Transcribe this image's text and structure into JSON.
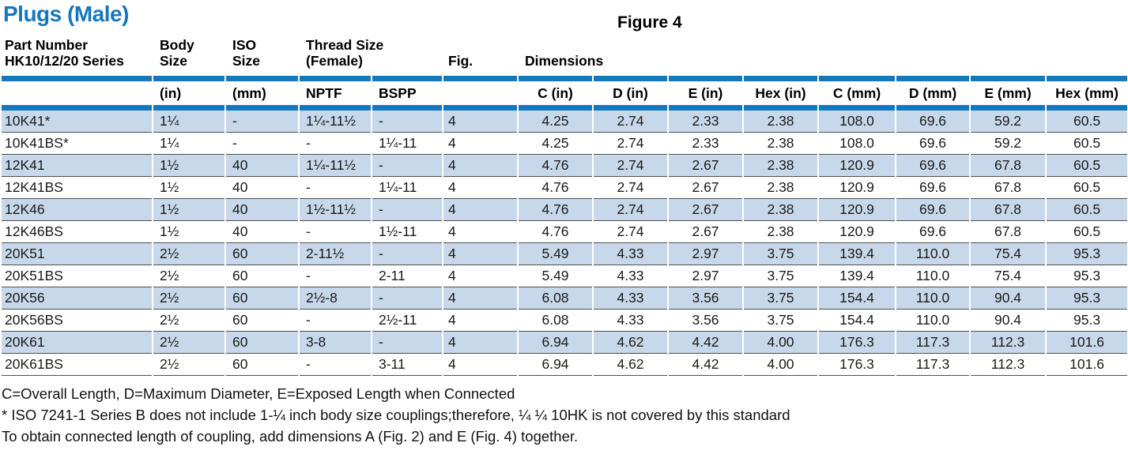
{
  "page": {
    "title": "Plugs (Male)",
    "figure_label": "Figure 4"
  },
  "colors": {
    "accent_blue": "#1577bd",
    "row_highlight_blue": "#c7d8ea",
    "row_separator_gray": "#4f4f4f",
    "text_black": "#1a1a1a"
  },
  "table": {
    "group_headers": {
      "part_number_line1": "Part Number",
      "part_number_line2": "HK10/12/20 Series",
      "body_line1": "Body",
      "body_line2": "Size",
      "iso_line1": "ISO",
      "iso_line2": "Size",
      "thread_line1": "Thread Size",
      "thread_line2": "(Female)",
      "fig": "Fig.",
      "dimensions": "Dimensions"
    },
    "sub_headers": {
      "body_in": "(in)",
      "iso_mm": "(mm)",
      "nptf": "NPTF",
      "bspp": "BSPP",
      "c_in": "C (in)",
      "d_in": "D (in)",
      "e_in": "E (in)",
      "hex_in": "Hex (in)",
      "c_mm": "C (mm)",
      "d_mm": "D (mm)",
      "e_mm": "E (mm)",
      "hex_mm": "Hex (mm)"
    },
    "rows": [
      {
        "part_number": "10K41*",
        "body_size_in": "1¼",
        "iso_size_mm": "-",
        "nptf": "1¼-11½",
        "bspp": "-",
        "fig": "4",
        "c_in": "4.25",
        "d_in": "2.74",
        "e_in": "2.33",
        "hex_in": "2.38",
        "c_mm": "108.0",
        "d_mm": "69.6",
        "e_mm": "59.2",
        "hex_mm": "60.5"
      },
      {
        "part_number": "10K41BS*",
        "body_size_in": "1¼",
        "iso_size_mm": "-",
        "nptf": "-",
        "bspp": "1¼-11",
        "fig": "4",
        "c_in": "4.25",
        "d_in": "2.74",
        "e_in": "2.33",
        "hex_in": "2.38",
        "c_mm": "108.0",
        "d_mm": "69.6",
        "e_mm": "59.2",
        "hex_mm": "60.5"
      },
      {
        "part_number": "12K41",
        "body_size_in": "1½",
        "iso_size_mm": "40",
        "nptf": "1¼-11½",
        "bspp": "-",
        "fig": "4",
        "c_in": "4.76",
        "d_in": "2.74",
        "e_in": "2.67",
        "hex_in": "2.38",
        "c_mm": "120.9",
        "d_mm": "69.6",
        "e_mm": "67.8",
        "hex_mm": "60.5"
      },
      {
        "part_number": "12K41BS",
        "body_size_in": "1½",
        "iso_size_mm": "40",
        "nptf": "-",
        "bspp": "1¼-11",
        "fig": "4",
        "c_in": "4.76",
        "d_in": "2.74",
        "e_in": "2.67",
        "hex_in": "2.38",
        "c_mm": "120.9",
        "d_mm": "69.6",
        "e_mm": "67.8",
        "hex_mm": "60.5"
      },
      {
        "part_number": "12K46",
        "body_size_in": "1½",
        "iso_size_mm": "40",
        "nptf": "1½-11½",
        "bspp": "-",
        "fig": "4",
        "c_in": "4.76",
        "d_in": "2.74",
        "e_in": "2.67",
        "hex_in": "2.38",
        "c_mm": "120.9",
        "d_mm": "69.6",
        "e_mm": "67.8",
        "hex_mm": "60.5"
      },
      {
        "part_number": "12K46BS",
        "body_size_in": "1½",
        "iso_size_mm": "40",
        "nptf": "-",
        "bspp": "1½-11",
        "fig": "4",
        "c_in": "4.76",
        "d_in": "2.74",
        "e_in": "2.67",
        "hex_in": "2.38",
        "c_mm": "120.9",
        "d_mm": "69.6",
        "e_mm": "67.8",
        "hex_mm": "60.5"
      },
      {
        "part_number": "20K51",
        "body_size_in": "2½",
        "iso_size_mm": "60",
        "nptf": "2-11½",
        "bspp": "-",
        "fig": "4",
        "c_in": "5.49",
        "d_in": "4.33",
        "e_in": "2.97",
        "hex_in": "3.75",
        "c_mm": "139.4",
        "d_mm": "110.0",
        "e_mm": "75.4",
        "hex_mm": "95.3"
      },
      {
        "part_number": "20K51BS",
        "body_size_in": "2½",
        "iso_size_mm": "60",
        "nptf": "-",
        "bspp": "2-11",
        "fig": "4",
        "c_in": "5.49",
        "d_in": "4.33",
        "e_in": "2.97",
        "hex_in": "3.75",
        "c_mm": "139.4",
        "d_mm": "110.0",
        "e_mm": "75.4",
        "hex_mm": "95.3"
      },
      {
        "part_number": "20K56",
        "body_size_in": "2½",
        "iso_size_mm": "60",
        "nptf": "2½-8",
        "bspp": "-",
        "fig": "4",
        "c_in": "6.08",
        "d_in": "4.33",
        "e_in": "3.56",
        "hex_in": "3.75",
        "c_mm": "154.4",
        "d_mm": "110.0",
        "e_mm": "90.4",
        "hex_mm": "95.3"
      },
      {
        "part_number": "20K56BS",
        "body_size_in": "2½",
        "iso_size_mm": "60",
        "nptf": "-",
        "bspp": "2½-11",
        "fig": "4",
        "c_in": "6.08",
        "d_in": "4.33",
        "e_in": "3.56",
        "hex_in": "3.75",
        "c_mm": "154.4",
        "d_mm": "110.0",
        "e_mm": "90.4",
        "hex_mm": "95.3"
      },
      {
        "part_number": "20K61",
        "body_size_in": "2½",
        "iso_size_mm": "60",
        "nptf": "3-8",
        "bspp": "-",
        "fig": "4",
        "c_in": "6.94",
        "d_in": "4.62",
        "e_in": "4.42",
        "hex_in": "4.00",
        "c_mm": "176.3",
        "d_mm": "117.3",
        "e_mm": "112.3",
        "hex_mm": "101.6"
      },
      {
        "part_number": "20K61BS",
        "body_size_in": "2½",
        "iso_size_mm": "60",
        "nptf": "-",
        "bspp": "3-11",
        "fig": "4",
        "c_in": "6.94",
        "d_in": "4.62",
        "e_in": "4.42",
        "hex_in": "4.00",
        "c_mm": "176.3",
        "d_mm": "117.3",
        "e_mm": "112.3",
        "hex_mm": "101.6"
      }
    ]
  },
  "footnotes": [
    "C=Overall Length, D=Maximum Diameter, E=Exposed Length when Connected",
    "* ISO 7241-1 Series B does not include 1-¼ inch body size couplings;therefore, ¼ ¼ 10HK is not covered by this standard",
    "To obtain connected length of coupling, add dimensions A (Fig. 2) and E (Fig. 4) together."
  ]
}
